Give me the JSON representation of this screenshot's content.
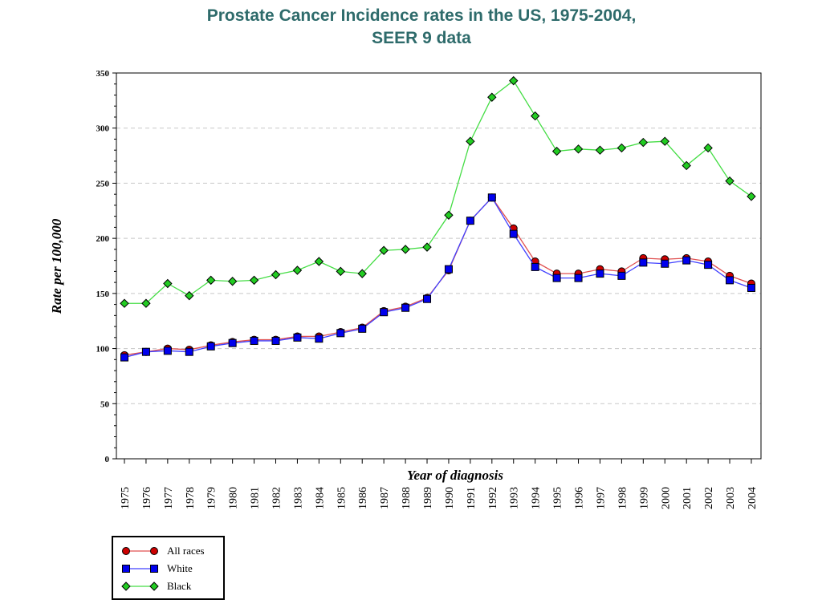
{
  "chart_data": {
    "type": "line",
    "title_line1": "Prostate Cancer Incidence rates in the US, 1975-2004,",
    "title_line2": "SEER 9 data",
    "xlabel": "Year of diagnosis",
    "ylabel": "Rate per 100,000",
    "ylim": [
      0,
      350
    ],
    "yticks": [
      0,
      50,
      100,
      150,
      200,
      250,
      300,
      350
    ],
    "grid": "horizontal dashed",
    "legend_position": "bottom-left",
    "x": [
      "1975",
      "1976",
      "1977",
      "1978",
      "1979",
      "1980",
      "1981",
      "1982",
      "1983",
      "1984",
      "1985",
      "1986",
      "1987",
      "1988",
      "1989",
      "1990",
      "1991",
      "1992",
      "1993",
      "1994",
      "1995",
      "1996",
      "1997",
      "1998",
      "1999",
      "2000",
      "2001",
      "2002",
      "2003",
      "2004"
    ],
    "series": [
      {
        "name": "All races",
        "color": "#cc0000",
        "line_color": "#e05050",
        "marker": "circle",
        "values": [
          94,
          97,
          100,
          99,
          103,
          106,
          108,
          108,
          111,
          111,
          115,
          119,
          134,
          138,
          146,
          171,
          216,
          237,
          209,
          179,
          168,
          168,
          172,
          170,
          182,
          181,
          182,
          179,
          166,
          159
        ]
      },
      {
        "name": "White",
        "color": "#0000ee",
        "line_color": "#4040ff",
        "marker": "square",
        "values": [
          92,
          97,
          98,
          97,
          102,
          105,
          107,
          107,
          110,
          109,
          114,
          118,
          133,
          137,
          145,
          172,
          216,
          237,
          204,
          174,
          164,
          164,
          168,
          166,
          178,
          177,
          180,
          176,
          162,
          155
        ]
      },
      {
        "name": "Black",
        "color": "#22cc22",
        "line_color": "#44dd44",
        "marker": "diamond",
        "values": [
          141,
          141,
          159,
          148,
          162,
          161,
          162,
          167,
          171,
          179,
          170,
          168,
          189,
          190,
          192,
          221,
          288,
          328,
          343,
          311,
          279,
          281,
          280,
          282,
          287,
          288,
          266,
          282,
          252,
          238
        ]
      }
    ]
  }
}
